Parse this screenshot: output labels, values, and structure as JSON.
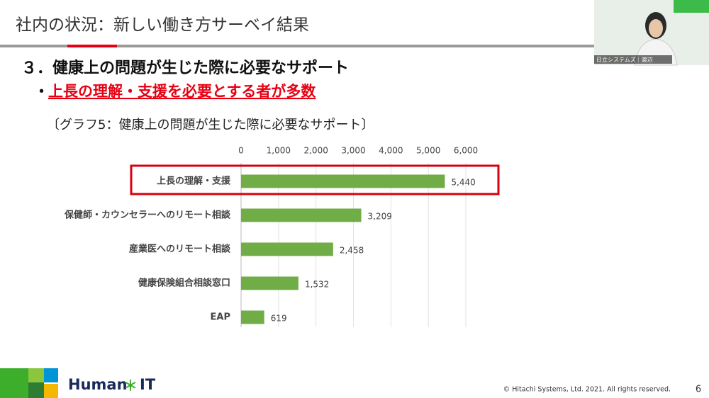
{
  "header": {
    "title": "社内の状況：新しい働き方サーベイ結果"
  },
  "section": {
    "heading": "３．健康上の問題が生じた際に必要なサポート",
    "bullet_mark": "・",
    "bullet": "上長の理解・支援を必要とする者が多数"
  },
  "video": {
    "name_tag": "日立システムズ｜渡辺"
  },
  "chart_data": {
    "type": "bar",
    "orientation": "horizontal",
    "title": "〔グラフ5：健康上の問題が生じた際に必要なサポート〕",
    "categories": [
      "上長の理解・支援",
      "保健師・カウンセラーへのリモート相談",
      "産業医へのリモート相談",
      "健康保険組合相談窓口",
      "EAP"
    ],
    "values": [
      5440,
      3209,
      2458,
      1532,
      619
    ],
    "value_labels": [
      "5,440",
      "3,209",
      "2,458",
      "1,532",
      "619"
    ],
    "color": "#70ad47",
    "xlim": [
      0,
      6000
    ],
    "xticks": [
      0,
      {
        "value": 1000,
        "label": "1,000"
      },
      {
        "value": 2000,
        "label": "2,000"
      },
      {
        "value": 3000,
        "label": "3,000"
      },
      {
        "value": 4000,
        "label": "4,000"
      },
      {
        "value": 5000,
        "label": "5,000"
      },
      {
        "value": 6000,
        "label": "6,000"
      }
    ],
    "grid": true
  },
  "footer": {
    "logo_left": "Human",
    "logo_mark": "＊",
    "logo_right": "IT",
    "copyright": "© Hitachi Systems, Ltd. 2021. All rights reserved.",
    "page": "6"
  }
}
